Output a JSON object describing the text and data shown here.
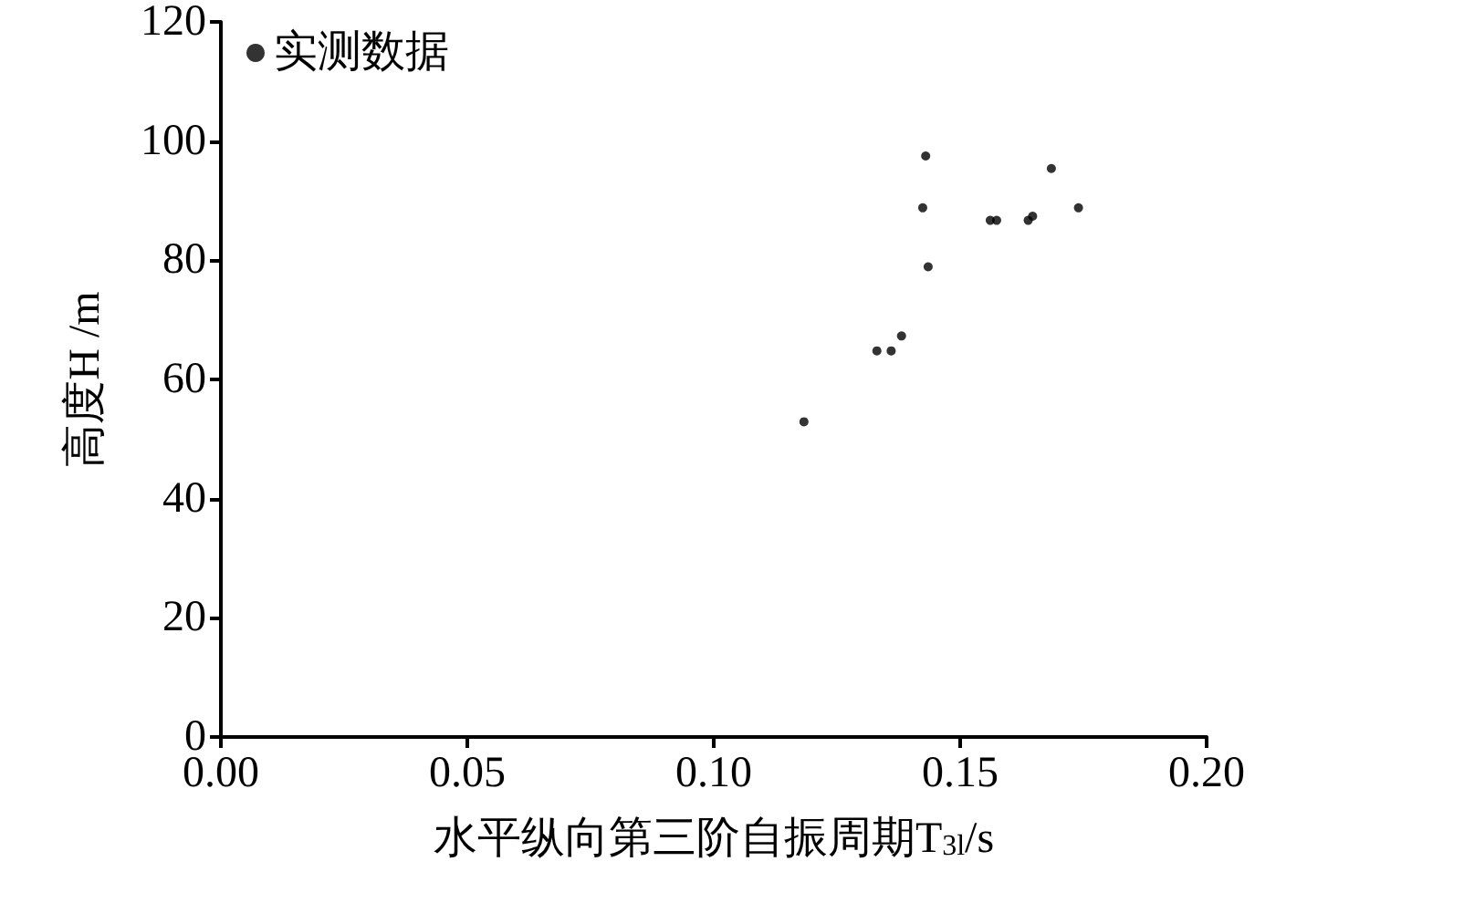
{
  "chart_data": {
    "type": "scatter",
    "xlabel": "水平纵向第三阶自振周期T$_{3l}$/s",
    "ylabel": "高度H /m",
    "xlim": [
      0,
      0.2
    ],
    "xticks": [
      {
        "value": 0,
        "label": "0.00"
      },
      {
        "value": 0.05,
        "label": "0.05"
      },
      {
        "value": 0.1,
        "label": "0.10"
      },
      {
        "value": 0.15,
        "label": "0.15"
      },
      {
        "value": 0.2,
        "label": "0.20"
      }
    ],
    "ylim": [
      0,
      120
    ],
    "yticks": [
      0,
      20,
      40,
      60,
      80,
      100,
      120
    ],
    "series": [
      {
        "name": "实测数据",
        "color": "#000000",
        "x": [
          0.143,
          0.1424,
          0.1435,
          0.1381,
          0.1331,
          0.136,
          0.1183,
          0.1561,
          0.1574,
          0.1638,
          0.1647,
          0.1685,
          0.174
        ],
        "values": [
          97.5,
          88.8,
          78.9,
          67.3,
          64.8,
          64.8,
          52.9,
          86.7,
          86.7,
          86.7,
          87.4,
          95.4,
          88.8
        ]
      }
    ],
    "marker": "circle",
    "grid": false,
    "legend": "top left"
  }
}
